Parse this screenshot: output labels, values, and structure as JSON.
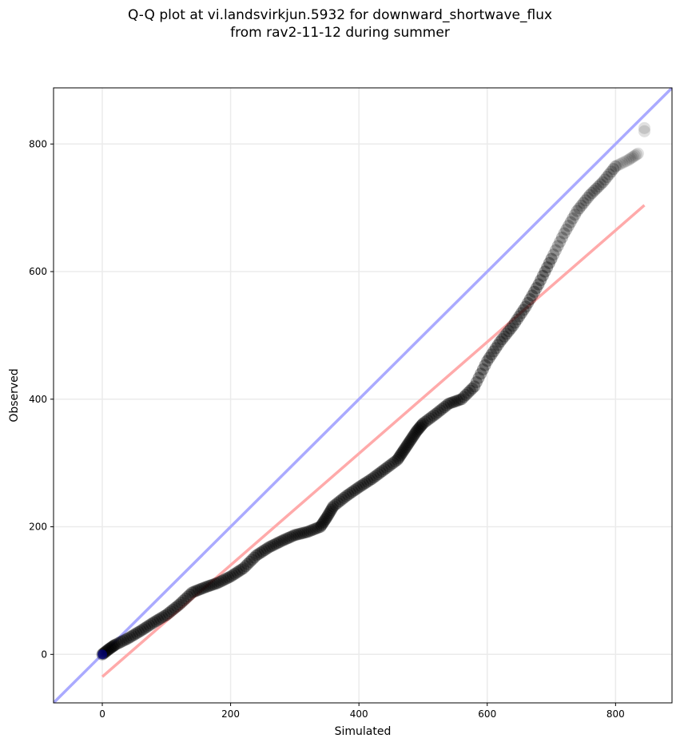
{
  "chart_data": {
    "type": "scatter",
    "title_line1": "Q-Q plot at vi.landsvirkjun.5932 for downward_shortwave_flux",
    "title_line2": "from rav2-11-12 during summer",
    "xlabel": "Simulated",
    "ylabel": "Observed",
    "xlim": [
      -76,
      888
    ],
    "ylim": [
      -76,
      888
    ],
    "xticks": [
      "0",
      "200",
      "400",
      "600",
      "800"
    ],
    "yticks": [
      "0",
      "200",
      "400",
      "600",
      "800"
    ],
    "xtick_values": [
      0,
      200,
      400,
      600,
      800
    ],
    "ytick_values": [
      0,
      200,
      400,
      600,
      800
    ],
    "grid": true,
    "colors": {
      "points": "#000000",
      "identity_line": "#aaaaff",
      "fit_line": "#ffaaaa",
      "origin_point": "#000080"
    },
    "identity_line": {
      "slope": 1,
      "intercept": 0
    },
    "fit_line": {
      "x": [
        0,
        845
      ],
      "y": [
        -35,
        704
      ]
    },
    "points": {
      "x": [
        0,
        10,
        20,
        40,
        60,
        80,
        100,
        120,
        140,
        160,
        180,
        200,
        220,
        240,
        260,
        280,
        300,
        320,
        340,
        350,
        360,
        380,
        400,
        420,
        440,
        460,
        470,
        480,
        490,
        500,
        520,
        540,
        560,
        580,
        600,
        620,
        640,
        660,
        680,
        700,
        720,
        740,
        760,
        780,
        800,
        820,
        835,
        845,
        845
      ],
      "y": [
        0,
        8,
        15,
        25,
        37,
        50,
        62,
        78,
        97,
        105,
        112,
        122,
        135,
        155,
        168,
        178,
        187,
        192,
        200,
        215,
        232,
        248,
        262,
        275,
        290,
        305,
        320,
        335,
        350,
        362,
        377,
        393,
        400,
        420,
        460,
        490,
        515,
        545,
        580,
        620,
        660,
        695,
        720,
        740,
        765,
        775,
        785,
        820,
        825
      ]
    }
  }
}
